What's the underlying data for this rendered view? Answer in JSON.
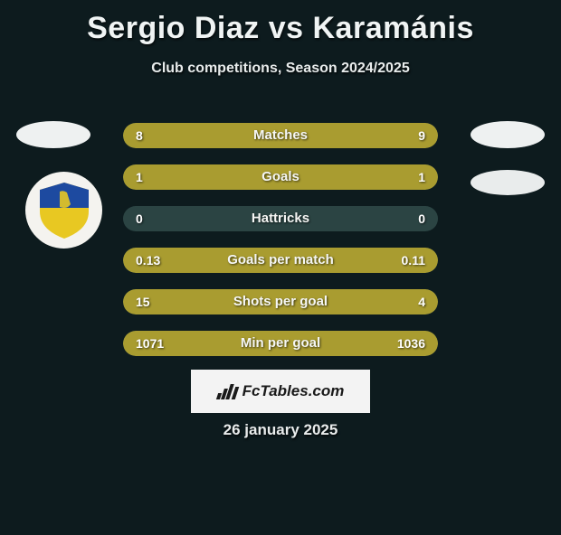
{
  "title": "Sergio Diaz vs Karamánis",
  "subtitle": "Club competitions, Season 2024/2025",
  "date": "26 january 2025",
  "logo_text": "FcTables.com",
  "colors": {
    "background": "#0d1b1e",
    "bar_track": "#2b4443",
    "bar_fill": "#a99c30",
    "text": "#f0f4f4",
    "logo_bg": "#f3f3f3",
    "logo_fg": "#1a1a1a",
    "badge_bg": "#f4f3ef",
    "badge_shield_top": "#1d4aa0",
    "badge_shield_bottom": "#e8c822"
  },
  "stats": [
    {
      "label": "Matches",
      "left_val": "8",
      "right_val": "9",
      "left_pct": 47,
      "right_pct": 53
    },
    {
      "label": "Goals",
      "left_val": "1",
      "right_val": "1",
      "left_pct": 50,
      "right_pct": 50
    },
    {
      "label": "Hattricks",
      "left_val": "0",
      "right_val": "0",
      "left_pct": 0,
      "right_pct": 0
    },
    {
      "label": "Goals per match",
      "left_val": "0.13",
      "right_val": "0.11",
      "left_pct": 54,
      "right_pct": 46
    },
    {
      "label": "Shots per goal",
      "left_val": "15",
      "right_val": "4",
      "left_pct": 79,
      "right_pct": 21
    },
    {
      "label": "Min per goal",
      "left_val": "1071",
      "right_val": "1036",
      "left_pct": 51,
      "right_pct": 49
    }
  ]
}
